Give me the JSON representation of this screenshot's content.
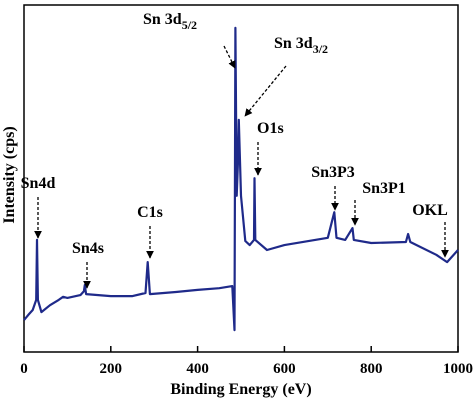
{
  "chart_data": {
    "type": "line",
    "xlabel": "Binding Energy (eV)",
    "ylabel": "Intensity (cps)",
    "xlim": [
      0,
      1000
    ],
    "xticks": [
      0,
      200,
      400,
      600,
      800,
      1000
    ],
    "ylim": [
      0,
      100
    ],
    "color": "#1f2a8a",
    "x": [
      0,
      10,
      20,
      28,
      30,
      32,
      40,
      60,
      80,
      90,
      100,
      130,
      138,
      140,
      143,
      200,
      250,
      280,
      285,
      290,
      350,
      400,
      450,
      480,
      485,
      487,
      490,
      493,
      495,
      500,
      510,
      520,
      530,
      531,
      533,
      560,
      600,
      700,
      715,
      720,
      740,
      757,
      760,
      800,
      880,
      885,
      890,
      950,
      975,
      1000
    ],
    "values": [
      9.2,
      10.7,
      12.1,
      15.0,
      32.3,
      15.0,
      11.5,
      13.5,
      15.0,
      15.9,
      15.6,
      16.4,
      17.5,
      19.3,
      16.7,
      16.1,
      16.1,
      17.0,
      25.9,
      16.7,
      17.3,
      17.9,
      18.4,
      19.0,
      6.3,
      93.4,
      45.0,
      55.0,
      66.9,
      45.0,
      32.0,
      30.8,
      32.3,
      50.1,
      32.3,
      29.4,
      30.8,
      32.9,
      40.3,
      32.9,
      32.3,
      35.7,
      32.3,
      31.4,
      31.7,
      34.0,
      31.7,
      28.0,
      25.9,
      29.4
    ],
    "annotations": [
      {
        "text": "Sn4d"
      },
      {
        "text": "Sn4s"
      },
      {
        "text": "C1s"
      },
      {
        "text": "Sn 3d",
        "sub": "5/2"
      },
      {
        "text": "Sn 3d",
        "sub": "3/2"
      },
      {
        "text": "O1s"
      },
      {
        "text": "Sn3P3"
      },
      {
        "text": "Sn3P1"
      },
      {
        "text": "OKL"
      }
    ]
  }
}
